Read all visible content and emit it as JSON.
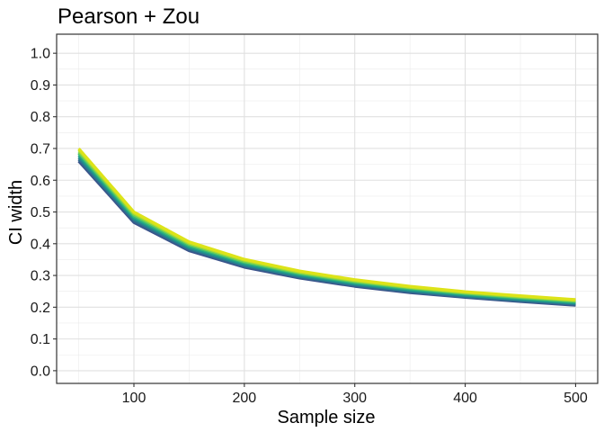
{
  "chart_data": {
    "type": "line",
    "title": "Pearson + Zou",
    "xlabel": "Sample size",
    "ylabel": "CI width",
    "x": [
      50,
      100,
      150,
      200,
      250,
      300,
      350,
      400,
      450,
      500
    ],
    "xlim": [
      30,
      520
    ],
    "ylim": [
      -0.04,
      1.06
    ],
    "xticks": [
      100,
      200,
      300,
      400,
      500
    ],
    "xtick_labels": [
      "100",
      "200",
      "300",
      "400",
      "500"
    ],
    "yticks": [
      0.0,
      0.1,
      0.2,
      0.3,
      0.4,
      0.5,
      0.6,
      0.7,
      0.8,
      0.9,
      1.0
    ],
    "ytick_labels": [
      "0.0",
      "0.1",
      "0.2",
      "0.3",
      "0.4",
      "0.5",
      "0.6",
      "0.7",
      "0.8",
      "0.9",
      "1.0"
    ],
    "grid": true,
    "legend": "none",
    "series": [
      {
        "color": "#3b528b",
        "values": [
          0.66,
          0.467,
          0.378,
          0.326,
          0.292,
          0.266,
          0.246,
          0.231,
          0.218,
          0.206
        ]
      },
      {
        "color": "#31688e",
        "values": [
          0.666,
          0.472,
          0.382,
          0.33,
          0.295,
          0.269,
          0.249,
          0.233,
          0.22,
          0.209
        ]
      },
      {
        "color": "#26828e",
        "values": [
          0.672,
          0.477,
          0.386,
          0.333,
          0.298,
          0.272,
          0.252,
          0.236,
          0.223,
          0.212
        ]
      },
      {
        "color": "#1f9e89",
        "values": [
          0.678,
          0.482,
          0.39,
          0.337,
          0.302,
          0.275,
          0.255,
          0.239,
          0.226,
          0.214
        ]
      },
      {
        "color": "#35b779",
        "values": [
          0.684,
          0.486,
          0.394,
          0.341,
          0.305,
          0.278,
          0.258,
          0.242,
          0.229,
          0.217
        ]
      },
      {
        "color": "#6ece58",
        "values": [
          0.689,
          0.491,
          0.398,
          0.344,
          0.308,
          0.281,
          0.261,
          0.244,
          0.231,
          0.219
        ]
      },
      {
        "color": "#b5de2b",
        "values": [
          0.695,
          0.496,
          0.402,
          0.348,
          0.311,
          0.284,
          0.263,
          0.247,
          0.234,
          0.222
        ]
      },
      {
        "color": "#dde318",
        "values": [
          0.7,
          0.5,
          0.406,
          0.351,
          0.314,
          0.287,
          0.266,
          0.249,
          0.236,
          0.224
        ]
      }
    ]
  }
}
